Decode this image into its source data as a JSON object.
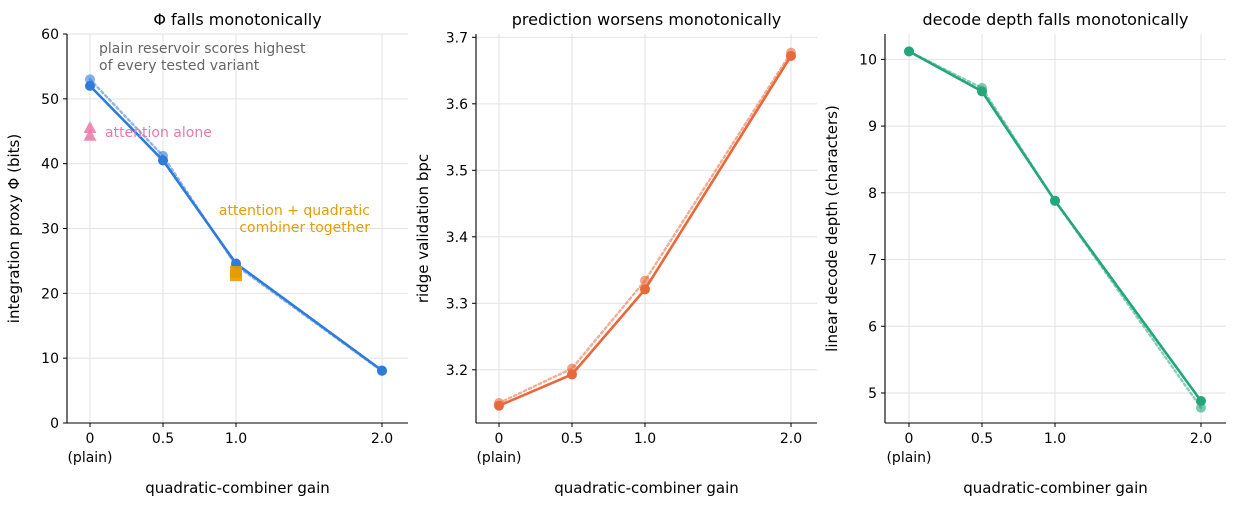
{
  "chart_data": [
    {
      "type": "line",
      "title": "Φ falls monotonically",
      "xlabel": "quadratic-combiner gain",
      "ylabel": "integration proxy Φ (bits)",
      "x": [
        0,
        0.5,
        1.0,
        2.0
      ],
      "xtick_labels": [
        "0\n(plain)",
        "0.5",
        "1.0",
        "2.0"
      ],
      "ylim": [
        0,
        60
      ],
      "yticks": [
        0,
        10,
        20,
        30,
        40,
        50,
        60
      ],
      "color": "#2f7bd9",
      "series": [
        {
          "style": "solid",
          "values": [
            52.0,
            40.5,
            24.6,
            8.1
          ]
        },
        {
          "style": "dotted",
          "values": [
            53.0,
            41.2,
            24.3,
            8.0
          ]
        }
      ],
      "markers": [
        {
          "x": 0,
          "values": [
            45.5,
            44.3
          ],
          "shape": "triangle",
          "color": "#e67aa9"
        },
        {
          "x": 1.0,
          "values": [
            23.3,
            22.8
          ],
          "shape": "square",
          "color": "#e69c00"
        }
      ],
      "annotations": [
        {
          "text": [
            "plain reservoir scores highest",
            "of every tested variant"
          ],
          "color": "#666666"
        },
        {
          "text": [
            "attention alone"
          ],
          "color": "#e67aa9"
        },
        {
          "text": [
            "attention + quadratic",
            "combiner together"
          ],
          "color": "#e69c00"
        }
      ],
      "grid": true
    },
    {
      "type": "line",
      "title": "prediction worsens monotonically",
      "xlabel": "quadratic-combiner gain",
      "ylabel": "ridge validation bpc",
      "x": [
        0,
        0.5,
        1.0,
        2.0
      ],
      "xtick_labels": [
        "0\n(plain)",
        "0.5",
        "1.0",
        "2.0"
      ],
      "ylim": [
        3.12,
        3.705
      ],
      "yticks": [
        3.2,
        3.3,
        3.4,
        3.5,
        3.6,
        3.7
      ],
      "color": "#e8683a",
      "series": [
        {
          "style": "solid",
          "values": [
            3.146,
            3.193,
            3.321,
            3.672
          ]
        },
        {
          "style": "dotted",
          "values": [
            3.15,
            3.202,
            3.334,
            3.677
          ]
        }
      ],
      "grid": true
    },
    {
      "type": "line",
      "title": "decode depth falls monotonically",
      "xlabel": "quadratic-combiner gain",
      "ylabel": "linear decode depth (characters)",
      "x": [
        0,
        0.5,
        1.0,
        2.0
      ],
      "xtick_labels": [
        "0\n(plain)",
        "0.5",
        "1.0",
        "2.0"
      ],
      "ylim": [
        4.55,
        10.38
      ],
      "yticks": [
        5,
        6,
        7,
        8,
        9,
        10
      ],
      "color": "#22a67a",
      "series": [
        {
          "style": "solid",
          "values": [
            10.12,
            9.52,
            7.88,
            4.88
          ]
        },
        {
          "style": "dotted",
          "values": [
            10.12,
            9.57,
            7.88,
            4.78
          ]
        }
      ],
      "grid": true
    }
  ]
}
